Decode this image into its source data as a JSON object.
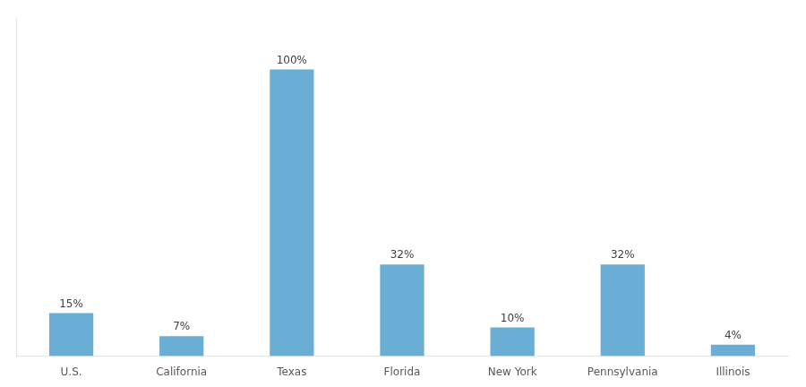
{
  "chart_data": {
    "type": "bar",
    "categories": [
      "U.S.",
      "California",
      "Texas",
      "Florida",
      "New York",
      "Pennsylvania",
      "Illinois"
    ],
    "values": [
      15,
      7,
      100,
      32,
      10,
      32,
      4
    ],
    "value_labels": [
      "15%",
      "7%",
      "100%",
      "32%",
      "10%",
      "32%",
      "4%"
    ],
    "data_labels": true,
    "color": "#6aaed6",
    "ylim": [
      0,
      118
    ],
    "grid": false,
    "tick_labels": "x"
  }
}
